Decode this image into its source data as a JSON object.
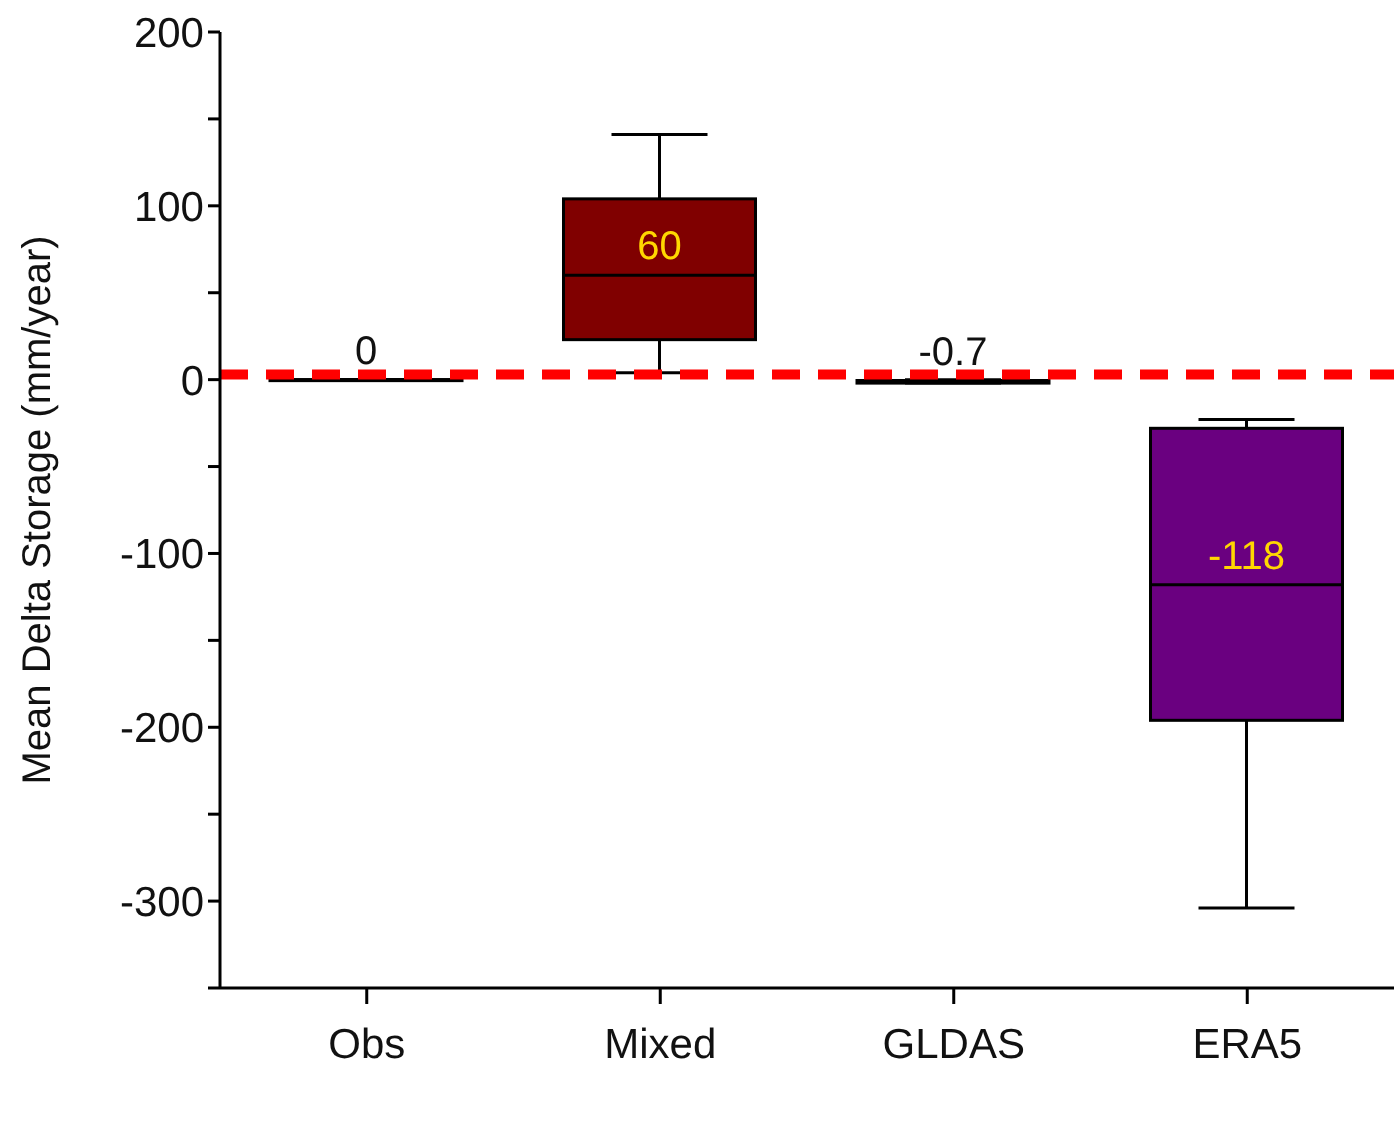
{
  "chart_data": {
    "type": "box",
    "ylabel": "Mean Delta Storage (mm/year)",
    "categories": [
      "Obs",
      "Mixed",
      "GLDAS",
      "ERA5"
    ],
    "boxes": [
      {
        "low": 0,
        "q1": 0,
        "median": 0,
        "q3": 0,
        "high": 0
      },
      {
        "low": 4,
        "q1": 23,
        "median": 60,
        "q3": 104,
        "high": 141
      },
      {
        "low": -2,
        "q1": -2,
        "median": -0.7,
        "q3": -0.5,
        "high": 0
      },
      {
        "low": -304,
        "q1": -196,
        "median": -118,
        "q3": -28,
        "high": -23
      }
    ],
    "colors": [
      null,
      "#800000",
      null,
      "#6a0080"
    ],
    "value_labels": [
      "0",
      "60",
      "-0.7",
      "-118"
    ],
    "ylim": [
      -350,
      200
    ],
    "yticks": [
      {
        "value": -350,
        "label": null
      },
      -300,
      {
        "value": -250,
        "label": null
      },
      -200,
      {
        "value": -150,
        "label": null
      },
      -100,
      {
        "value": -50,
        "label": null
      },
      0,
      {
        "value": 50,
        "label": null
      },
      100,
      {
        "value": 150,
        "label": null
      },
      200
    ],
    "ref_lines": [
      {
        "axis": "y",
        "value": 3,
        "color": "#ff0000",
        "line_style": "dashed"
      }
    ],
    "grid": false,
    "legend": false
  }
}
